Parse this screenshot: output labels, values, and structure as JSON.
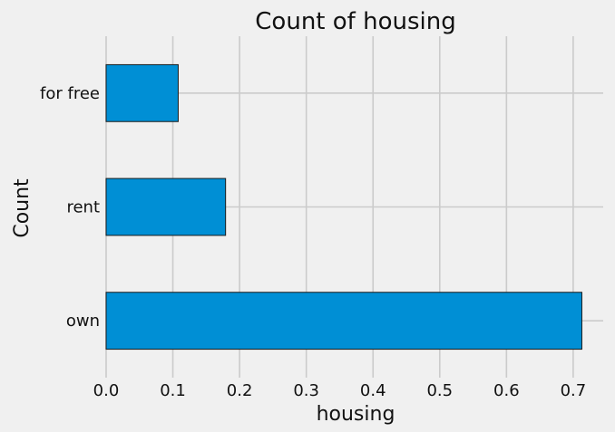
{
  "chart_data": {
    "type": "bar",
    "orientation": "horizontal",
    "title": "Count of housing",
    "xlabel": "housing",
    "ylabel": "Count",
    "categories": [
      "own",
      "rent",
      "for free"
    ],
    "values": [
      0.713,
      0.179,
      0.108
    ],
    "xlim": [
      0,
      0.745
    ],
    "xticks": [
      0.0,
      0.1,
      0.2,
      0.3,
      0.4,
      0.5,
      0.6,
      0.7
    ],
    "xtick_labels": [
      "0.0",
      "0.1",
      "0.2",
      "0.3",
      "0.4",
      "0.5",
      "0.6",
      "0.7"
    ],
    "grid": true,
    "colors": {
      "background": "#f0f0f0",
      "bar": "#008fd5",
      "bar_edge": "#1a1a1a",
      "grid": "#cbcbcb",
      "text": "#111111"
    }
  }
}
